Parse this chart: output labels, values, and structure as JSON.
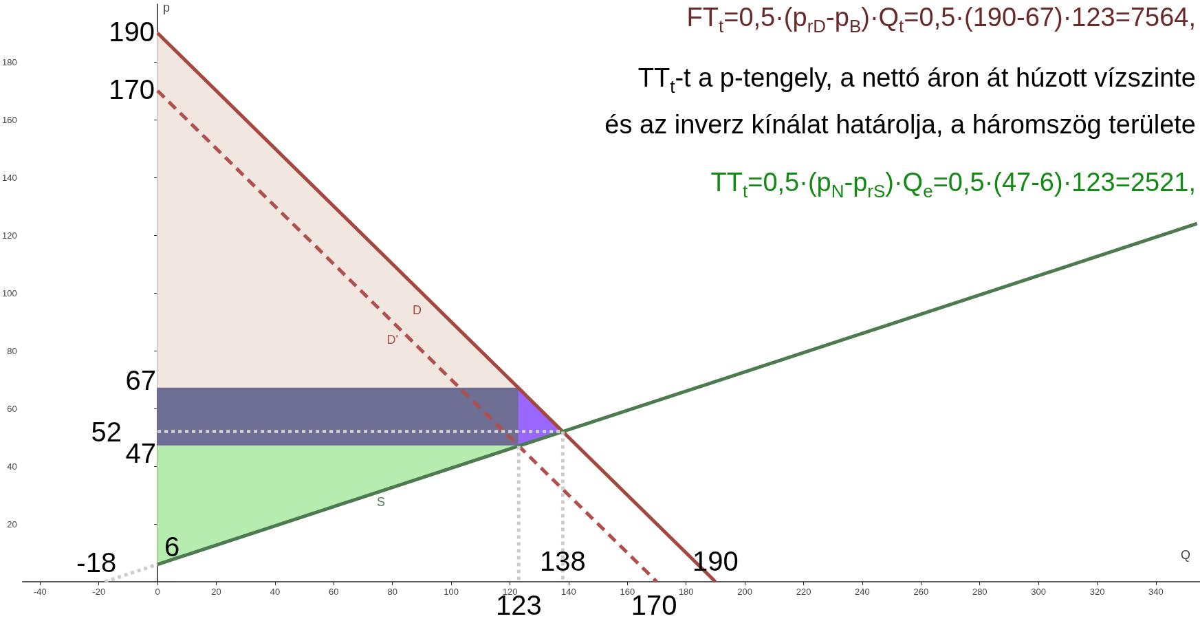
{
  "chart_data": {
    "type": "line",
    "xlabel": "Q",
    "ylabel": "p",
    "xlim": [
      -46,
      355
    ],
    "xticks": [
      -40,
      -20,
      0,
      20,
      40,
      60,
      80,
      100,
      120,
      140,
      160,
      180,
      200,
      220,
      240,
      260,
      280,
      300,
      320,
      340
    ],
    "ylim": [
      0,
      200
    ],
    "yticks": [
      20,
      40,
      60,
      80,
      100,
      120,
      140,
      160,
      180
    ],
    "marker": "none",
    "series": [
      {
        "type": "area",
        "color": "#f2e6e1",
        "x": [
          0,
          123,
          0
        ],
        "values": [
          190,
          67,
          67
        ]
      },
      {
        "type": "area",
        "color": "#6e6e94",
        "x": [
          0,
          123,
          123,
          0
        ],
        "values": [
          67,
          67,
          47,
          47
        ]
      },
      {
        "type": "area",
        "color": "#b6ecb0",
        "x": [
          0,
          123,
          0
        ],
        "values": [
          47,
          47,
          6
        ]
      },
      {
        "type": "area",
        "color": "#9966ff",
        "x": [
          123,
          138,
          123
        ],
        "values": [
          67,
          52,
          47
        ]
      },
      {
        "type": "line",
        "name": "D",
        "color": "#a3473f",
        "line_style": "solid",
        "x": [
          0,
          190
        ],
        "values": [
          190,
          0
        ]
      },
      {
        "type": "line",
        "name": "D'",
        "color": "#b0504c",
        "line_style": "dashed",
        "x": [
          0,
          170
        ],
        "values": [
          170,
          0
        ]
      },
      {
        "type": "line",
        "name": "S",
        "color": "#4d7a4f",
        "line_style": "solid",
        "x": [
          0,
          354
        ],
        "values": [
          6,
          124
        ]
      },
      {
        "type": "line",
        "color": "#cccccc",
        "line_style": "dotted",
        "x": [
          -18,
          0
        ],
        "values": [
          0,
          6
        ]
      },
      {
        "type": "line",
        "color": "#cccccc",
        "line_style": "dotted",
        "x": [
          0,
          138
        ],
        "values": [
          52,
          52
        ]
      },
      {
        "type": "line",
        "color": "#cccccc",
        "line_style": "dotted",
        "x": [
          123,
          123
        ],
        "values": [
          47,
          0
        ]
      },
      {
        "type": "line",
        "color": "#cccccc",
        "line_style": "dotted",
        "x": [
          138,
          138
        ],
        "values": [
          52,
          0
        ]
      }
    ],
    "annotations": [
      "FT$_{t}$=0,5·(p$_{rD}$-p$_{B}$)·Q$_{t}$=0,5·(190-67)·123=7564,",
      "TT$_{t}$-t a p-tengely, a nettó áron át húzott vízszinte",
      "és az inverz kínálat határolja, a háromszög területe",
      "TT$_{t}$=0,5·(p$_{N}$-p$_{rS}$)·Q$_{e}$=0,5·(47-6)·123=2521,",
      {
        "text": "190",
        "x": 0,
        "y": 190
      },
      {
        "text": "170",
        "x": 0,
        "y": 170
      },
      {
        "text": "67",
        "x": 0,
        "y": 67
      },
      {
        "text": "52",
        "x": 0,
        "y": 52
      },
      {
        "text": "47",
        "x": 0,
        "y": 47
      },
      {
        "text": "-18",
        "x": -18,
        "y": 0
      },
      {
        "text": "6",
        "x": 0,
        "y": 6
      },
      {
        "text": "138",
        "x": 138,
        "y": 0
      },
      {
        "text": "190",
        "x": 190,
        "y": 0
      },
      {
        "text": "123",
        "x": 123,
        "y": 0
      },
      {
        "text": "170",
        "x": 170,
        "y": 0
      }
    ]
  }
}
